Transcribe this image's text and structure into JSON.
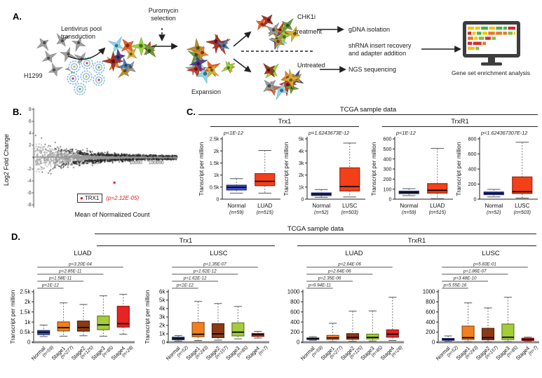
{
  "panel_a": {
    "label": "A.",
    "cell_line": "H1299",
    "transduction": "Lentivirus pool transduction",
    "puromycin": "Puromycin selection",
    "expansion": "Expansion",
    "chk1i": "CHK1i",
    "treatment": "treatment",
    "untreated": "Untreated",
    "gdna": "gDNA isolation",
    "shrna": "shRNA insert recovery and adapter addition",
    "ngs": "NGS sequencing",
    "gsea": "Gene set enrichment analysis"
  },
  "panel_b": {
    "label": "B.",
    "ylabel": "Log2 Fold Change",
    "xlabel": "Mean of Normalized Count",
    "legend_gene": "TRX1",
    "legend_p": "(p=2.12E-05)"
  },
  "panel_c": {
    "label": "C.",
    "title": "TCGA sample data",
    "gene1": "Trx1",
    "gene2": "TrxR1"
  },
  "panel_d": {
    "label": "D.",
    "title": "TCGA sample data",
    "gene1": "Trx1",
    "gene2": "TrxR1",
    "d1_label": "LUAD",
    "d2_label": "LUSC",
    "d3_label": "LUAD",
    "d4_label": "LUSC"
  },
  "colors": {
    "normal_box": "#3a50c8",
    "tumor_box": "#f34019",
    "stage1": "#f08021",
    "stage2": "#8c3a16",
    "stage3": "#a4cd39",
    "stage4": "#e82323",
    "scatter_gray": "#969696",
    "scatter_black": "#1a1a1a",
    "highlight_red": "#e01b1b"
  },
  "chart_data": [
    {
      "type": "scatter",
      "ylabel": "Log2 Fold Change",
      "xlabel": "Mean of Normalized Count",
      "x_scale": "log",
      "xlim": [
        0.1,
        1000000
      ],
      "xticks": [
        [
          -1,
          "0.1"
        ],
        [
          1,
          "10"
        ],
        [
          2,
          "100"
        ],
        [
          4,
          "10000"
        ],
        [
          5,
          "100000"
        ]
      ],
      "ylim": [
        -8,
        8
      ],
      "yticks": [
        8,
        6,
        4,
        2,
        -2,
        -4,
        -6,
        -8
      ],
      "series": [
        {
          "name": "not significant",
          "color": "#969696"
        },
        {
          "name": "significant",
          "color": "#1a1a1a"
        }
      ],
      "highlight": {
        "label": "TRX1",
        "p": "(p=2.12E-05)",
        "color": "#e01b1b"
      }
    },
    {
      "type": "box",
      "gene": "Trx1",
      "cohort": "LUAD",
      "p": "p<1E-12",
      "ylabel": "Transcript per million",
      "ylim": [
        0,
        2500
      ],
      "yticks": [
        [
          0,
          "0"
        ],
        [
          500,
          "0.5k"
        ],
        [
          1000,
          "1k"
        ],
        [
          1500,
          "1.5k"
        ],
        [
          2000,
          "2k"
        ],
        [
          2500,
          "2.5k"
        ]
      ],
      "categories": [
        {
          "label": "Normal",
          "n": "(n=59)"
        },
        {
          "label": "LUAD",
          "n": "(n=515)"
        }
      ],
      "boxes": [
        {
          "whislo": 250,
          "q1": 380,
          "med": 490,
          "q3": 580,
          "whishi": 850,
          "color": "#3a50c8"
        },
        {
          "whislo": 250,
          "q1": 560,
          "med": 740,
          "q3": 1060,
          "whishi": 2020,
          "color": "#f34019"
        }
      ]
    },
    {
      "type": "box",
      "gene": "Trx1",
      "cohort": "LUSC",
      "p": "p=1.6243673E-12",
      "ylabel": "Transcript per million",
      "ylim": [
        0,
        5000
      ],
      "yticks": [
        [
          0,
          "0"
        ],
        [
          1000,
          "1k"
        ],
        [
          2000,
          "2k"
        ],
        [
          3000,
          "3k"
        ],
        [
          4000,
          "4k"
        ],
        [
          5000,
          "5k"
        ]
      ],
      "categories": [
        {
          "label": "Normal",
          "n": "(n=52)"
        },
        {
          "label": "LUSC",
          "n": "(n=503)"
        }
      ],
      "boxes": [
        {
          "whislo": 150,
          "q1": 300,
          "med": 420,
          "q3": 520,
          "whishi": 800,
          "color": "#3a50c8"
        },
        {
          "whislo": 180,
          "q1": 680,
          "med": 1050,
          "q3": 2600,
          "whishi": 4650,
          "color": "#f34019"
        }
      ]
    },
    {
      "type": "box",
      "gene": "TrxR1",
      "cohort": "LUAD",
      "p": "p<1E-12",
      "ylabel": "Transcript per million",
      "ylim": [
        0,
        600
      ],
      "yticks": [
        [
          0,
          "0"
        ],
        [
          100,
          "100"
        ],
        [
          200,
          "200"
        ],
        [
          300,
          "300"
        ],
        [
          400,
          "400"
        ],
        [
          500,
          "500"
        ],
        [
          600,
          "600"
        ]
      ],
      "categories": [
        {
          "label": "Normal",
          "n": "(n=59)"
        },
        {
          "label": "LUAD",
          "n": "(n=515)"
        }
      ],
      "boxes": [
        {
          "whislo": 35,
          "q1": 55,
          "med": 68,
          "q3": 80,
          "whishi": 105,
          "color": "#3a50c8"
        },
        {
          "whislo": 5,
          "q1": 60,
          "med": 88,
          "q3": 155,
          "whishi": 505,
          "color": "#f34019"
        }
      ]
    },
    {
      "type": "box",
      "gene": "TrxR1",
      "cohort": "LUSC",
      "p": "p<1.624367307E-12",
      "ylabel": "Transcript per million",
      "ylim": [
        0,
        800
      ],
      "yticks": [
        [
          0,
          "0"
        ],
        [
          200,
          "200"
        ],
        [
          400,
          "400"
        ],
        [
          600,
          "600"
        ],
        [
          800,
          "800"
        ]
      ],
      "categories": [
        {
          "label": "Normal",
          "n": "(n=52)"
        },
        {
          "label": "LUSC",
          "n": "(n=503)"
        }
      ],
      "boxes": [
        {
          "whislo": 30,
          "q1": 60,
          "med": 78,
          "q3": 95,
          "whishi": 130,
          "color": "#3a50c8"
        },
        {
          "whislo": 15,
          "q1": 75,
          "med": 100,
          "q3": 295,
          "whishi": 755,
          "color": "#f34019"
        }
      ]
    },
    {
      "type": "box",
      "gene": "Trx1",
      "cohort": "LUAD stages",
      "ylabel": "Transcript per million",
      "ylim": [
        0,
        2500
      ],
      "yticks": [
        [
          0,
          "0"
        ],
        [
          500,
          "0.5k"
        ],
        [
          1000,
          "1k"
        ],
        [
          1500,
          "1.5k"
        ],
        [
          2000,
          "2k"
        ],
        [
          2500,
          "2.5k"
        ]
      ],
      "categories": [
        {
          "label": "Normal",
          "n": "(n=59)"
        },
        {
          "label": "Stage1",
          "n": "(n=277)"
        },
        {
          "label": "Stage2",
          "n": "(n=125)"
        },
        {
          "label": "Stage3",
          "n": "(n=85)"
        },
        {
          "label": "Stage4",
          "n": "(n=28)"
        }
      ],
      "boxes": [
        {
          "whislo": 280,
          "q1": 380,
          "med": 500,
          "q3": 580,
          "whishi": 850,
          "color": "#3a50c8"
        },
        {
          "whislo": 300,
          "q1": 560,
          "med": 720,
          "q3": 1010,
          "whishi": 1950,
          "color": "#f08021"
        },
        {
          "whislo": 320,
          "q1": 550,
          "med": 730,
          "q3": 1050,
          "whishi": 1870,
          "color": "#8c3a16"
        },
        {
          "whislo": 300,
          "q1": 620,
          "med": 860,
          "q3": 1300,
          "whishi": 2300,
          "color": "#a4cd39"
        },
        {
          "whislo": 400,
          "q1": 750,
          "med": 920,
          "q3": 1780,
          "whishi": 2370,
          "color": "#e82323"
        }
      ],
      "pvalues": [
        {
          "text": "p<1E-12",
          "to": 1
        },
        {
          "text": "p=1.58E-11",
          "to": 2
        },
        {
          "text": "p=2.85E-11",
          "to": 3
        },
        {
          "text": "p=3.20E-04",
          "to": 4
        }
      ]
    },
    {
      "type": "box",
      "gene": "Trx1",
      "cohort": "LUSC stages",
      "ylabel": "Transcript per million",
      "ylim": [
        0,
        6000
      ],
      "yticks": [
        [
          0,
          "0"
        ],
        [
          1000,
          "1k"
        ],
        [
          2000,
          "2k"
        ],
        [
          3000,
          "3k"
        ],
        [
          4000,
          "4k"
        ],
        [
          5000,
          "5k"
        ],
        [
          6000,
          "6k"
        ]
      ],
      "categories": [
        {
          "label": "Normal",
          "n": "(n=52)"
        },
        {
          "label": "Stage1",
          "n": "(n=243)"
        },
        {
          "label": "Stage2",
          "n": "(n=157)"
        },
        {
          "label": "Stage3",
          "n": "(n=85)"
        },
        {
          "label": "Stage4",
          "n": "(n=7)"
        }
      ],
      "boxes": [
        {
          "whislo": 150,
          "q1": 300,
          "med": 450,
          "q3": 600,
          "whishi": 800,
          "color": "#3a50c8"
        },
        {
          "whislo": 200,
          "q1": 650,
          "med": 950,
          "q3": 2350,
          "whishi": 4850,
          "color": "#f08021"
        },
        {
          "whislo": 250,
          "q1": 550,
          "med": 1000,
          "q3": 2200,
          "whishi": 4600,
          "color": "#8c3a16"
        },
        {
          "whislo": 400,
          "q1": 750,
          "med": 1200,
          "q3": 2300,
          "whishi": 4250,
          "color": "#a4cd39"
        },
        {
          "whislo": 500,
          "q1": 700,
          "med": 900,
          "q3": 1050,
          "whishi": 1300,
          "color": "#e82323"
        }
      ],
      "pvalues": [
        {
          "text": "p<1E-12",
          "to": 1
        },
        {
          "text": "p=1.62E-12",
          "to": 2
        },
        {
          "text": "p=1.62E-12",
          "to": 3
        },
        {
          "text": "p=1.35E-07",
          "to": 4
        }
      ]
    },
    {
      "type": "box",
      "gene": "TrxR1",
      "cohort": "LUAD stages",
      "ylim": [
        0,
        1000
      ],
      "yticks": [
        [
          0,
          "0"
        ],
        [
          200,
          "200"
        ],
        [
          400,
          "400"
        ],
        [
          600,
          "600"
        ],
        [
          800,
          "800"
        ],
        [
          1000,
          "1000"
        ]
      ],
      "categories": [
        {
          "label": "Normal",
          "n": "(n=59)"
        },
        {
          "label": "Stage1",
          "n": "(n=277)"
        },
        {
          "label": "Stage2",
          "n": "(n=125)"
        },
        {
          "label": "Stage3",
          "n": "(n=85)"
        },
        {
          "label": "Stage4",
          "n": "(n=28)"
        }
      ],
      "boxes": [
        {
          "whislo": 40,
          "q1": 55,
          "med": 70,
          "q3": 85,
          "whishi": 110,
          "color": "#3a50c8"
        },
        {
          "whislo": 10,
          "q1": 55,
          "med": 85,
          "q3": 135,
          "whishi": 375,
          "color": "#f08021"
        },
        {
          "whislo": 20,
          "q1": 60,
          "med": 95,
          "q3": 170,
          "whishi": 615,
          "color": "#8c3a16"
        },
        {
          "whislo": 25,
          "q1": 65,
          "med": 95,
          "q3": 160,
          "whishi": 620,
          "color": "#a4cd39"
        },
        {
          "whislo": 35,
          "q1": 100,
          "med": 160,
          "q3": 245,
          "whishi": 890,
          "color": "#e82323"
        }
      ],
      "pvalues": [
        {
          "text": "p=9.94E-11",
          "to": 1
        },
        {
          "text": "p=2.35E-06",
          "to": 2
        },
        {
          "text": "p=2.64E-06",
          "to": 3
        },
        {
          "text": "p=2.64E-06",
          "to": 4
        }
      ]
    },
    {
      "type": "box",
      "gene": "TrxR1",
      "cohort": "LUSC stages",
      "ylim": [
        0,
        1000
      ],
      "yticks": [
        [
          0,
          "0"
        ],
        [
          200,
          "200"
        ],
        [
          400,
          "400"
        ],
        [
          600,
          "600"
        ],
        [
          800,
          "800"
        ],
        [
          1000,
          "1000"
        ]
      ],
      "categories": [
        {
          "label": "Normal",
          "n": "(n=52)"
        },
        {
          "label": "Stage1",
          "n": "(n=243)"
        },
        {
          "label": "Stage2",
          "n": "(n=157)"
        },
        {
          "label": "Stage3",
          "n": "(n=85)"
        },
        {
          "label": "Stage4",
          "n": "(n=7)"
        }
      ],
      "boxes": [
        {
          "whislo": 20,
          "q1": 40,
          "med": 55,
          "q3": 75,
          "whishi": 125,
          "color": "#3a50c8"
        },
        {
          "whislo": 10,
          "q1": 55,
          "med": 90,
          "q3": 320,
          "whishi": 780,
          "color": "#f08021"
        },
        {
          "whislo": 10,
          "q1": 50,
          "med": 90,
          "q3": 275,
          "whishi": 680,
          "color": "#8c3a16"
        },
        {
          "whislo": 15,
          "q1": 55,
          "med": 100,
          "q3": 360,
          "whishi": 890,
          "color": "#a4cd39"
        },
        {
          "whislo": 20,
          "q1": 35,
          "med": 55,
          "q3": 80,
          "whishi": 100,
          "color": "#e82323"
        }
      ],
      "pvalues": [
        {
          "text": "p=5.55E-16",
          "to": 1
        },
        {
          "text": "p=3.48E-10",
          "to": 2
        },
        {
          "text": "p=1.86E-07",
          "to": 3
        },
        {
          "text": "p=5.83E-01",
          "to": 4
        }
      ]
    }
  ]
}
